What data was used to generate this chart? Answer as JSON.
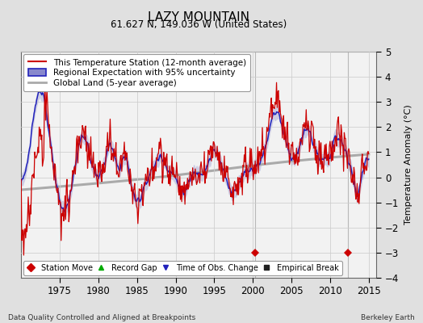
{
  "title": "LAZY MOUNTAIN",
  "subtitle": "61.627 N, 149.036 W (United States)",
  "ylabel": "Temperature Anomaly (°C)",
  "xlabel_bottom_left": "Data Quality Controlled and Aligned at Breakpoints",
  "xlabel_bottom_right": "Berkeley Earth",
  "ylim": [
    -4,
    5
  ],
  "xlim": [
    1970,
    2016
  ],
  "xticks": [
    1975,
    1980,
    1985,
    1990,
    1995,
    2000,
    2005,
    2010,
    2015
  ],
  "yticks": [
    -4,
    -3,
    -2,
    -1,
    0,
    1,
    2,
    3,
    4,
    5
  ],
  "bg_color": "#e0e0e0",
  "plot_bg_color": "#f2f2f2",
  "station_color": "#cc0000",
  "regional_color": "#2222bb",
  "regional_fill_color": "#8888cc",
  "global_color": "#aaaaaa",
  "station_move_years": [
    2000.3,
    2012.3
  ],
  "station_move_y": -3.0,
  "grid_color": "#cccccc",
  "legend_upper_fontsize": 7.5,
  "legend_lower_fontsize": 7.0
}
